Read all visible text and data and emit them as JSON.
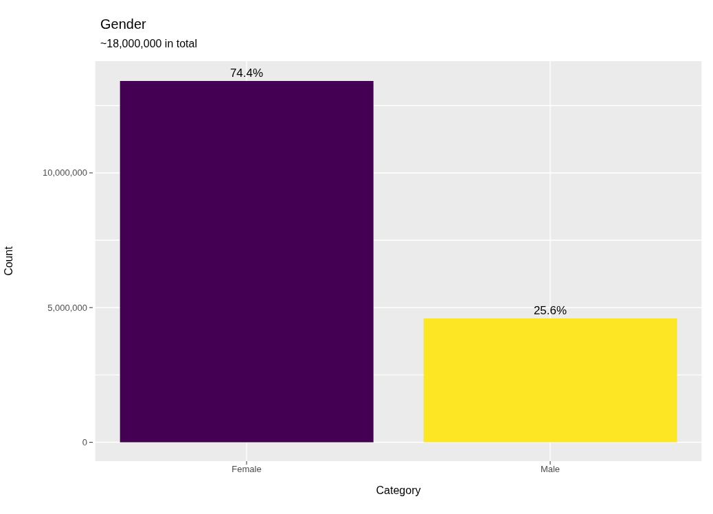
{
  "chart_data": {
    "type": "bar",
    "title": "Gender",
    "subtitle": "~18,000,000 in total",
    "xlabel": "Category",
    "ylabel": "Count",
    "categories": [
      "Female",
      "Male"
    ],
    "values": [
      13410000,
      4600000
    ],
    "colors": [
      "#440154",
      "#fde725"
    ],
    "annotations": [
      {
        "text": "74.4%",
        "x": "Female",
        "y": 13410000
      },
      {
        "text": "25.6%",
        "x": "Male",
        "y": 4600000
      }
    ],
    "ylim": [
      -700000,
      14150000
    ],
    "yticks": [
      {
        "value": 0,
        "label": "0"
      },
      {
        "value": 2500000,
        "label": null
      },
      {
        "value": 5000000,
        "label": "5,000,000"
      },
      {
        "value": 7500000,
        "label": null
      },
      {
        "value": 10000000,
        "label": "10,000,000"
      },
      {
        "value": 12500000,
        "label": null
      }
    ],
    "grid": true,
    "legend": false
  }
}
